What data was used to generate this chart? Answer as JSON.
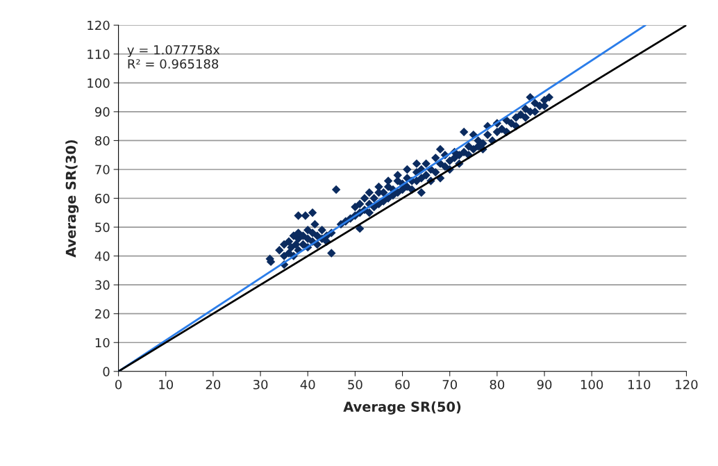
{
  "chart_data": {
    "type": "scatter",
    "xlabel": "Average SR(50)",
    "ylabel": "Average SR(30)",
    "xlim": [
      0,
      120
    ],
    "xticks": [
      0,
      10,
      20,
      30,
      40,
      50,
      60,
      70,
      80,
      90,
      100,
      110,
      120
    ],
    "ylim": [
      0,
      120
    ],
    "yticks": [
      0,
      10,
      20,
      30,
      40,
      50,
      60,
      70,
      80,
      90,
      100,
      110,
      120
    ],
    "grid": "y",
    "legend": false,
    "marker": "diamond",
    "annotations": [
      "y = 1.077758x\nR² = 0.965188"
    ],
    "series": [
      {
        "color": "#0b2b5f",
        "x": [
          32,
          32.2,
          34,
          35,
          35,
          35,
          36,
          36,
          36.5,
          37,
          37,
          37.5,
          38,
          38,
          38,
          38,
          39,
          39,
          39.5,
          40,
          40,
          40,
          41,
          41,
          41,
          41.5,
          42,
          42,
          43,
          43,
          44,
          44,
          45,
          45,
          46,
          47,
          48,
          49,
          50,
          50,
          51,
          51,
          51,
          52,
          52,
          53,
          53,
          53,
          54,
          54,
          55,
          55,
          55,
          56,
          56,
          57,
          57,
          57,
          58,
          58,
          59,
          59,
          59,
          60,
          60,
          61,
          61,
          61,
          62,
          62,
          63,
          63,
          63,
          64,
          64,
          64,
          65,
          65,
          66,
          66,
          67,
          67,
          68,
          68,
          68,
          69,
          69,
          70,
          70,
          71,
          71,
          72,
          72,
          73,
          73,
          74,
          74,
          75,
          75,
          76,
          76,
          77,
          77,
          78,
          78,
          79,
          80,
          80,
          81,
          82,
          82,
          83,
          84,
          84,
          85,
          86,
          86,
          87,
          87,
          88,
          88,
          89,
          90,
          90,
          91
        ],
        "values": [
          39,
          38,
          42,
          37,
          40,
          44,
          41,
          45,
          43,
          47,
          40,
          44,
          42,
          46,
          48,
          54,
          44,
          47,
          54,
          43,
          46,
          49,
          55,
          45,
          48,
          51,
          44,
          47,
          46,
          49,
          47,
          45,
          41,
          48,
          63,
          51,
          52,
          53,
          54,
          57,
          49.5,
          55,
          58,
          56,
          60,
          55,
          58,
          62,
          57,
          60,
          58,
          62,
          64,
          59,
          62,
          60,
          64,
          66,
          61,
          63,
          62,
          66,
          68,
          63,
          65,
          64,
          67,
          70,
          63,
          66,
          66,
          69,
          72,
          62,
          67,
          70,
          68,
          72,
          66,
          70,
          69,
          74,
          67,
          72,
          77,
          71,
          75,
          70,
          73,
          74,
          76,
          72,
          75,
          76,
          83,
          75,
          78,
          77,
          82,
          78,
          80,
          79,
          77,
          82,
          85,
          80,
          83,
          86,
          84,
          83,
          87,
          86,
          88,
          85,
          89,
          88,
          91,
          90,
          95,
          90,
          93,
          92,
          92,
          94,
          95
        ]
      },
      {
        "type": "line",
        "color": "#2b7de9",
        "x": [
          0,
          111.34
        ],
        "values": [
          0,
          120
        ],
        "line_style": "solid",
        "marker": "none"
      },
      {
        "type": "line",
        "color": "#000000",
        "x": [
          0,
          120
        ],
        "values": [
          0,
          120
        ],
        "line_style": "solid",
        "marker": "none"
      }
    ]
  }
}
